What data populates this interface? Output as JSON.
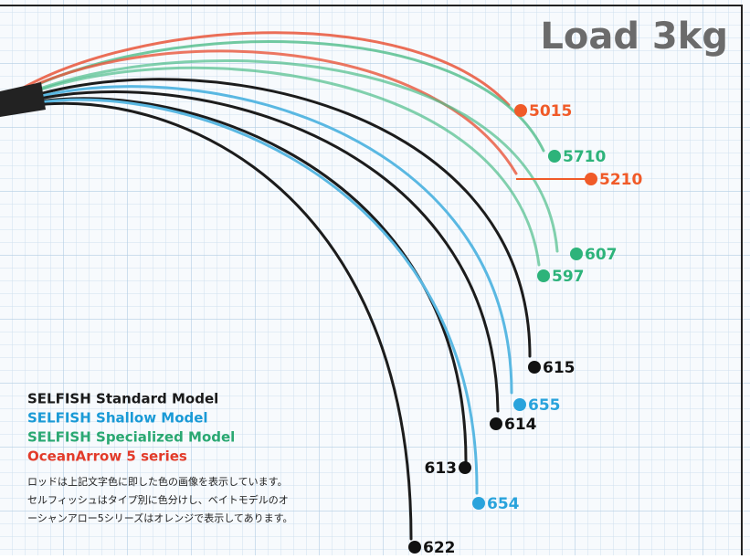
{
  "title": "Load 3kg",
  "legend": [
    "SELFISH Standard Model",
    "SELFISH Shallow Model",
    "SELFISH Specialized Model",
    "OceanArrow 5 series"
  ],
  "note": [
    "ロッドは上記文字色に即した色の画像を表示しています。",
    "セルフィッシュはタイプ別に色分けし、ベイトモデルのオ",
    "ーシャンアロー5シリーズはオレンジで表示してあります。"
  ],
  "rods": [
    "5015",
    "5710",
    "5210",
    "607",
    "597",
    "615",
    "655",
    "614",
    "613",
    "654",
    "622"
  ]
}
